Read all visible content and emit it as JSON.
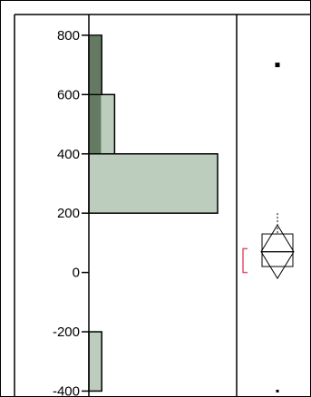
{
  "chart_data": {
    "type": "bar",
    "orientation": "horizontal",
    "title": "",
    "xlabel": "",
    "ylabel": "",
    "ylim": [
      -420,
      870
    ],
    "yticks": [
      800,
      600,
      400,
      200,
      0,
      -200,
      -400
    ],
    "yticks_labels": [
      "800",
      "600",
      "400",
      "200",
      "0",
      "-200",
      "-400"
    ],
    "bins": [
      {
        "start": -400,
        "end": -200,
        "count": 1,
        "highlight": 0
      },
      {
        "start": 200,
        "end": 400,
        "count": 10,
        "highlight": 0
      },
      {
        "start": 400,
        "end": 600,
        "count": 2,
        "highlight": 1
      },
      {
        "start": 600,
        "end": 800,
        "count": 1,
        "highlight": 1
      }
    ],
    "count_max": 10.5,
    "outlier_box_plot": {
      "median": 70,
      "q1": 20,
      "q3": 130,
      "whisker_low": 20,
      "whisker_high": 200,
      "mean_diamond": {
        "center": 70,
        "low": -20,
        "high": 160
      },
      "shortest_half": {
        "low": 0,
        "high": 80
      },
      "outliers": [
        700,
        -400
      ]
    },
    "colors": {
      "bar_fill": "#bccdbd",
      "highlight_fill": "#647a62",
      "shortest_half": "#e0506a",
      "axis": "#000000"
    },
    "grid": false,
    "legend": "none"
  }
}
